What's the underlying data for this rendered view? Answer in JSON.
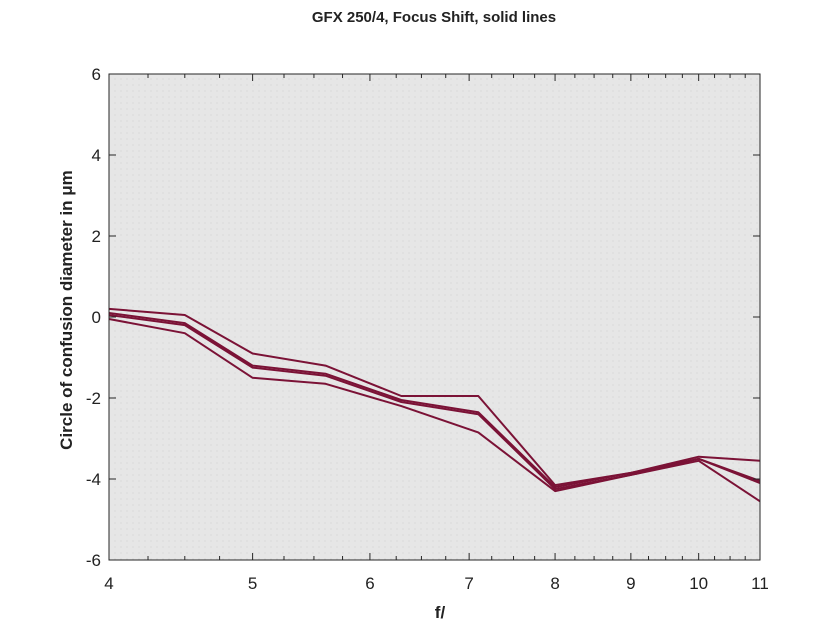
{
  "chart_data": {
    "type": "line",
    "title": "GFX 250/4, Focus Shift, solid lines",
    "xlabel": "f/",
    "ylabel": "Circle of confusion diameter in μm",
    "x_scale": "log",
    "xlim": [
      4,
      11
    ],
    "ylim": [
      -6,
      6
    ],
    "x_ticks": [
      4,
      5,
      6,
      7,
      8,
      9,
      10,
      11
    ],
    "y_ticks": [
      -6,
      -4,
      -2,
      0,
      2,
      4,
      6
    ],
    "grid": false,
    "legend": "none",
    "line_color": "#7b1236",
    "plot_background": "#e6e6e6",
    "x": [
      4,
      4.5,
      5,
      5.6,
      6.3,
      7.1,
      8,
      9,
      10,
      11
    ],
    "series": [
      {
        "values": [
          0.2,
          0.05,
          -0.9,
          -1.2,
          -1.95,
          -1.95,
          -4.15,
          -3.85,
          -3.45,
          -3.55
        ]
      },
      {
        "values": [
          0.1,
          -0.15,
          -1.2,
          -1.4,
          -2.05,
          -2.35,
          -4.2,
          -3.85,
          -3.5,
          -4.05
        ]
      },
      {
        "values": [
          0.05,
          -0.2,
          -1.25,
          -1.45,
          -2.1,
          -2.4,
          -4.25,
          -3.9,
          -3.5,
          -4.1
        ]
      },
      {
        "values": [
          -0.05,
          -0.4,
          -1.5,
          -1.65,
          -2.2,
          -2.85,
          -4.3,
          -3.9,
          -3.55,
          -4.55
        ]
      }
    ]
  }
}
